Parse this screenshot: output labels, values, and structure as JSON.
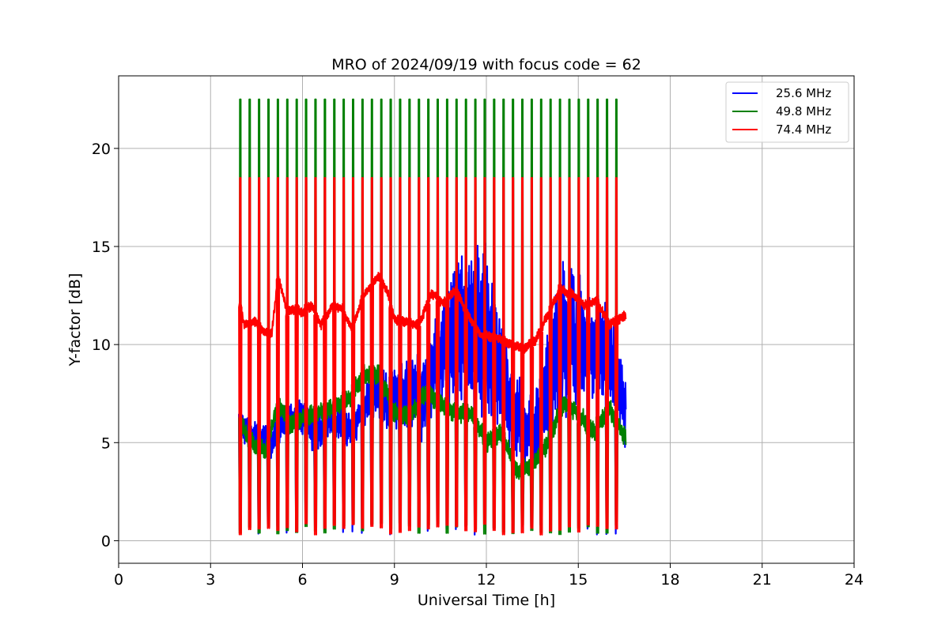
{
  "chart_data": {
    "type": "line",
    "title": "MRO of 2024/09/19 with focus code = 62",
    "xlabel": "Universal Time [h]",
    "ylabel": "Y-factor [dB]",
    "xlim": [
      0,
      24
    ],
    "ylim": [
      -1.15,
      23.7
    ],
    "xticks": [
      0,
      3,
      6,
      9,
      12,
      15,
      18,
      21,
      24
    ],
    "yticks": [
      0,
      5,
      10,
      15,
      20
    ],
    "grid": true,
    "legend_position": "top-right",
    "calibration_pulses": {
      "start_h": 3.97,
      "end_h": 16.55,
      "count": 42,
      "peak_49_8_MHz": 22.5,
      "peak_74_4_MHz": 18.5,
      "floor": 0.3
    },
    "series": [
      {
        "name": "25.6 MHz",
        "color": "#0000ff",
        "baseline": {
          "x": [
            3.95,
            4.2,
            4.6,
            5.0,
            5.3,
            5.7,
            6.1,
            6.4,
            6.8,
            7.2,
            7.6,
            8.0,
            8.4,
            8.8,
            9.2,
            9.6,
            10.0,
            10.4,
            10.8,
            11.2,
            11.6,
            12.0,
            12.4,
            12.8,
            13.2,
            13.6,
            14.0,
            14.4,
            14.8,
            15.2,
            15.6,
            16.0,
            16.55
          ],
          "y": [
            6.0,
            5.5,
            5.3,
            5.0,
            6.0,
            6.2,
            6.3,
            5.3,
            6.3,
            6.0,
            5.5,
            6.8,
            7.5,
            7.0,
            7.5,
            7.5,
            7.3,
            9.5,
            10.0,
            10.5,
            11.0,
            10.5,
            9.0,
            7.0,
            5.5,
            5.5,
            8.0,
            10.0,
            10.5,
            10.0,
            10.0,
            9.5,
            6.5
          ]
        },
        "amplitude": {
          "x": [
            3.95,
            8.0,
            9.5,
            10.5,
            11.0,
            11.5,
            12.0,
            12.8,
            13.5,
            14.0,
            14.5,
            15.0,
            15.8,
            16.55
          ],
          "y": [
            0.6,
            0.8,
            1.5,
            2.0,
            3.0,
            3.5,
            3.0,
            2.0,
            1.5,
            2.0,
            3.0,
            2.5,
            2.0,
            1.5
          ]
        }
      },
      {
        "name": "49.8 MHz",
        "color": "#008000",
        "baseline": {
          "x": [
            3.95,
            4.3,
            4.8,
            5.2,
            5.6,
            6.0,
            6.5,
            7.0,
            7.5,
            8.0,
            8.5,
            9.0,
            9.5,
            10.0,
            10.5,
            11.0,
            11.5,
            12.0,
            12.5,
            13.0,
            13.5,
            14.0,
            14.5,
            15.0,
            15.5,
            16.0,
            16.55
          ],
          "y": [
            6.0,
            5.0,
            4.6,
            7.0,
            6.0,
            6.2,
            6.5,
            6.8,
            7.2,
            8.5,
            8.5,
            6.5,
            6.3,
            7.5,
            7.0,
            6.5,
            6.5,
            5.0,
            5.5,
            3.5,
            3.8,
            5.0,
            7.0,
            6.5,
            5.5,
            6.8,
            5.2
          ]
        },
        "amplitude": {
          "x": [
            3.95,
            16.55
          ],
          "y": [
            0.4,
            0.4
          ]
        }
      },
      {
        "name": "74.4 MHz",
        "color": "#ff0000",
        "baseline": {
          "x": [
            3.95,
            4.1,
            4.4,
            4.8,
            5.0,
            5.2,
            5.5,
            5.8,
            6.0,
            6.3,
            6.6,
            7.0,
            7.3,
            7.6,
            8.0,
            8.5,
            8.8,
            9.0,
            9.3,
            9.8,
            10.2,
            10.6,
            11.0,
            11.4,
            11.8,
            12.3,
            12.8,
            13.2,
            13.6,
            14.0,
            14.4,
            14.8,
            15.2,
            15.6,
            16.0,
            16.55
          ],
          "y": [
            12.2,
            11.0,
            11.2,
            10.6,
            10.6,
            13.5,
            11.7,
            11.8,
            11.6,
            12.0,
            11.0,
            12.0,
            11.8,
            10.8,
            12.5,
            13.5,
            12.6,
            11.3,
            11.2,
            11.0,
            12.6,
            12.1,
            12.8,
            11.5,
            10.5,
            10.4,
            10.0,
            9.8,
            10.2,
            11.5,
            12.8,
            12.6,
            12.0,
            12.3,
            11.0,
            11.5
          ]
        },
        "amplitude": {
          "x": [
            3.95,
            16.55
          ],
          "y": [
            0.2,
            0.2
          ]
        }
      }
    ]
  }
}
